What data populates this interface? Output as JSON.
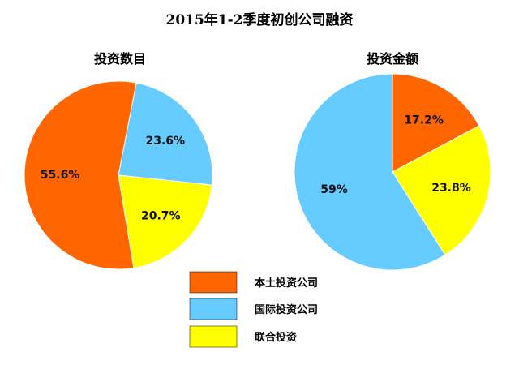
{
  "chart_data": {
    "type": "pie",
    "title": "2015年1-2季度初创公司融资",
    "legend_position": "bottom-center",
    "series_names": [
      "本土投资公司",
      "国际投资公司",
      "联合投资"
    ],
    "colors": [
      "#FF6600",
      "#66CCFF",
      "#FFFF00"
    ],
    "pies": [
      {
        "title": "投资数目",
        "values": [
          55.6,
          23.6,
          20.7
        ],
        "labels": [
          "55.6%",
          "23.6%",
          "20.7%"
        ]
      },
      {
        "title": "投资金额",
        "values": [
          17.2,
          59,
          23.8
        ],
        "labels": [
          "17.2%",
          "59%",
          "23.8%"
        ]
      }
    ]
  }
}
